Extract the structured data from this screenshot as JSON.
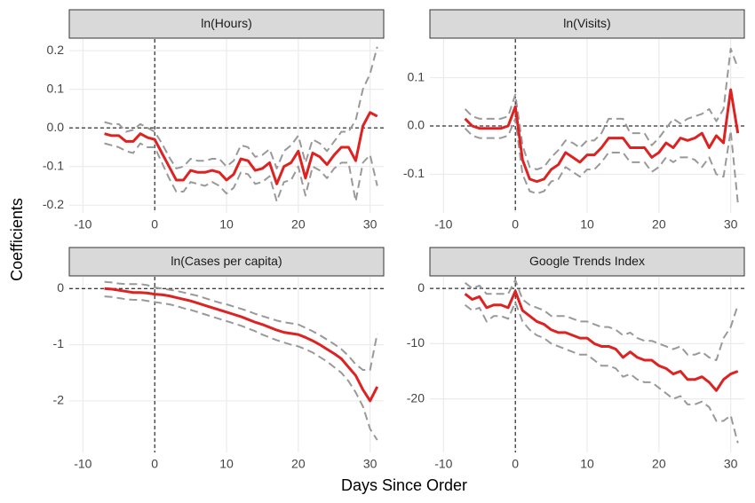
{
  "xlabel": "Days Since Order",
  "ylabel": "Coefficients",
  "chart_data": [
    {
      "type": "line",
      "title": "ln(Hours)",
      "x": [
        -7,
        -6,
        -5,
        -4,
        -3,
        -2,
        -1,
        0,
        1,
        2,
        3,
        4,
        5,
        6,
        7,
        8,
        9,
        10,
        11,
        12,
        13,
        14,
        15,
        16,
        17,
        18,
        19,
        20,
        21,
        22,
        23,
        24,
        25,
        26,
        27,
        28,
        29,
        30,
        31
      ],
      "xlim": [
        -11.9,
        31.9
      ],
      "xticks": [
        -10,
        0,
        10,
        20,
        30
      ],
      "ylim": [
        -0.22,
        0.23
      ],
      "yticks": [
        -0.2,
        -0.1,
        {
          "value": 0,
          "label": "0.0"
        },
        0.1,
        0.2
      ],
      "hline": 0,
      "vline": 0,
      "grid": true,
      "series": [
        {
          "color": "#999999",
          "dash": true,
          "values": [
            0.015,
            0.01,
            0.01,
            -0.01,
            -0.005,
            0.01,
            0.0,
            -0.01,
            -0.04,
            -0.075,
            -0.105,
            -0.1,
            -0.08,
            -0.085,
            -0.085,
            -0.08,
            -0.08,
            -0.1,
            -0.085,
            -0.045,
            -0.05,
            -0.075,
            -0.07,
            -0.055,
            -0.105,
            -0.06,
            -0.045,
            -0.02,
            -0.09,
            -0.03,
            -0.04,
            -0.06,
            -0.035,
            -0.01,
            -0.01,
            0.02,
            0.1,
            0.14,
            0.21
          ]
        },
        {
          "color": "#999999",
          "dash": true,
          "values": [
            -0.04,
            -0.045,
            -0.05,
            -0.06,
            -0.065,
            -0.04,
            -0.05,
            -0.05,
            -0.09,
            -0.13,
            -0.165,
            -0.165,
            -0.14,
            -0.145,
            -0.15,
            -0.14,
            -0.15,
            -0.17,
            -0.155,
            -0.115,
            -0.12,
            -0.145,
            -0.14,
            -0.125,
            -0.19,
            -0.14,
            -0.135,
            -0.1,
            -0.175,
            -0.1,
            -0.11,
            -0.13,
            -0.105,
            -0.09,
            -0.09,
            -0.19,
            -0.09,
            -0.07,
            -0.15
          ]
        },
        {
          "color": "#dd2222",
          "dash": false,
          "values": [
            -0.015,
            -0.02,
            -0.02,
            -0.035,
            -0.035,
            -0.015,
            -0.025,
            -0.03,
            -0.065,
            -0.1,
            -0.135,
            -0.135,
            -0.11,
            -0.115,
            -0.115,
            -0.11,
            -0.115,
            -0.135,
            -0.12,
            -0.08,
            -0.085,
            -0.11,
            -0.105,
            -0.09,
            -0.145,
            -0.1,
            -0.09,
            -0.06,
            -0.13,
            -0.065,
            -0.075,
            -0.095,
            -0.07,
            -0.05,
            -0.05,
            -0.085,
            0.005,
            0.04,
            0.03
          ]
        }
      ]
    },
    {
      "type": "line",
      "title": "ln(Visits)",
      "x": [
        -7,
        -6,
        -5,
        -4,
        -3,
        -2,
        -1,
        0,
        1,
        2,
        3,
        4,
        5,
        6,
        7,
        8,
        9,
        10,
        11,
        12,
        13,
        14,
        15,
        16,
        17,
        18,
        19,
        20,
        21,
        22,
        23,
        24,
        25,
        26,
        27,
        28,
        29,
        30,
        31
      ],
      "xlim": [
        -11.9,
        31.9
      ],
      "xticks": [
        -10,
        0,
        10,
        20,
        30
      ],
      "ylim": [
        -0.18,
        0.18
      ],
      "yticks": [
        -0.1,
        {
          "value": 0,
          "label": "0.0"
        },
        0.1
      ],
      "hline": 0,
      "vline": 0,
      "grid": true,
      "series": [
        {
          "color": "#999999",
          "dash": true,
          "values": [
            0.035,
            0.02,
            0.015,
            0.015,
            0.015,
            0.015,
            0.02,
            0.065,
            -0.04,
            -0.085,
            -0.09,
            -0.085,
            -0.065,
            -0.05,
            -0.03,
            -0.035,
            -0.045,
            -0.03,
            -0.03,
            -0.015,
            0.015,
            0.015,
            0.015,
            -0.015,
            -0.015,
            -0.015,
            -0.04,
            -0.025,
            -0.005,
            0.015,
            0.005,
            0.015,
            0.02,
            0.025,
            0.035,
            0.01,
            0.035,
            0.16,
            0.12
          ]
        },
        {
          "color": "#999999",
          "dash": true,
          "values": [
            -0.005,
            -0.02,
            -0.025,
            -0.025,
            -0.025,
            -0.025,
            -0.02,
            0.015,
            -0.1,
            -0.135,
            -0.14,
            -0.135,
            -0.115,
            -0.11,
            -0.085,
            -0.095,
            -0.105,
            -0.09,
            -0.09,
            -0.075,
            -0.055,
            -0.055,
            -0.055,
            -0.075,
            -0.075,
            -0.075,
            -0.095,
            -0.085,
            -0.065,
            -0.075,
            -0.065,
            -0.065,
            -0.07,
            -0.085,
            -0.065,
            -0.1,
            -0.105,
            -0.01,
            -0.16
          ]
        },
        {
          "color": "#dd2222",
          "dash": false,
          "values": [
            0.015,
            0.0,
            -0.005,
            -0.005,
            -0.005,
            -0.005,
            0.0,
            0.04,
            -0.07,
            -0.11,
            -0.115,
            -0.11,
            -0.09,
            -0.08,
            -0.055,
            -0.065,
            -0.075,
            -0.06,
            -0.06,
            -0.045,
            -0.025,
            -0.025,
            -0.025,
            -0.045,
            -0.045,
            -0.045,
            -0.065,
            -0.055,
            -0.035,
            -0.045,
            -0.025,
            -0.03,
            -0.025,
            -0.015,
            -0.045,
            -0.02,
            -0.035,
            0.075,
            -0.015
          ]
        }
      ]
    },
    {
      "type": "line",
      "title": "ln(Cases per capita)",
      "x": [
        -7,
        -6,
        -5,
        -4,
        -3,
        -2,
        -1,
        0,
        1,
        2,
        3,
        4,
        5,
        6,
        7,
        8,
        9,
        10,
        11,
        12,
        13,
        14,
        15,
        16,
        17,
        18,
        19,
        20,
        21,
        22,
        23,
        24,
        25,
        26,
        27,
        28,
        29,
        30,
        31
      ],
      "xlim": [
        -11.9,
        31.9
      ],
      "xticks": [
        -10,
        0,
        10,
        20,
        30
      ],
      "ylim": [
        -2.92,
        0.21
      ],
      "yticks": [
        -2,
        -1,
        0
      ],
      "hline": 0,
      "vline": 0,
      "grid": true,
      "series": [
        {
          "color": "#999999",
          "dash": true,
          "values": [
            0.12,
            0.11,
            0.09,
            0.08,
            0.08,
            0.08,
            0.06,
            0.02,
            0.0,
            -0.02,
            -0.04,
            -0.07,
            -0.1,
            -0.13,
            -0.17,
            -0.21,
            -0.25,
            -0.28,
            -0.32,
            -0.36,
            -0.4,
            -0.45,
            -0.49,
            -0.53,
            -0.57,
            -0.6,
            -0.62,
            -0.64,
            -0.7,
            -0.76,
            -0.83,
            -0.91,
            -0.99,
            -1.08,
            -1.2,
            -1.35,
            -1.45,
            -1.45,
            -0.8
          ]
        },
        {
          "color": "#999999",
          "dash": true,
          "values": [
            -0.14,
            -0.15,
            -0.17,
            -0.19,
            -0.2,
            -0.2,
            -0.22,
            -0.24,
            -0.26,
            -0.28,
            -0.31,
            -0.35,
            -0.38,
            -0.42,
            -0.46,
            -0.5,
            -0.54,
            -0.58,
            -0.62,
            -0.66,
            -0.71,
            -0.76,
            -0.82,
            -0.87,
            -0.92,
            -0.96,
            -1.0,
            -1.03,
            -1.08,
            -1.14,
            -1.22,
            -1.3,
            -1.4,
            -1.5,
            -1.65,
            -1.85,
            -2.1,
            -2.5,
            -2.7
          ]
        },
        {
          "color": "#dd2222",
          "dash": false,
          "values": [
            0,
            -0.01,
            -0.03,
            -0.05,
            -0.07,
            -0.07,
            -0.08,
            -0.1,
            -0.11,
            -0.13,
            -0.16,
            -0.19,
            -0.22,
            -0.26,
            -0.3,
            -0.34,
            -0.38,
            -0.42,
            -0.46,
            -0.5,
            -0.55,
            -0.6,
            -0.64,
            -0.69,
            -0.74,
            -0.78,
            -0.8,
            -0.82,
            -0.87,
            -0.93,
            -1.0,
            -1.08,
            -1.16,
            -1.25,
            -1.4,
            -1.55,
            -1.8,
            -2.0,
            -1.75
          ]
        }
      ]
    },
    {
      "type": "line",
      "title": "Google Trends Index",
      "x": [
        -7,
        -6,
        -5,
        -4,
        -3,
        -2,
        -1,
        0,
        1,
        2,
        3,
        4,
        5,
        6,
        7,
        8,
        9,
        10,
        11,
        12,
        13,
        14,
        15,
        16,
        17,
        18,
        19,
        20,
        21,
        22,
        23,
        24,
        25,
        26,
        27,
        28,
        29,
        30,
        31
      ],
      "xlim": [
        -11.9,
        31.9
      ],
      "xticks": [
        -10,
        0,
        10,
        20,
        30
      ],
      "ylim": [
        -29.7,
        2.1
      ],
      "yticks": [
        -20,
        -10,
        0
      ],
      "hline": 0,
      "vline": 0,
      "grid": true,
      "series": [
        {
          "color": "#999999",
          "dash": true,
          "values": [
            1,
            0,
            0.5,
            -1,
            -1,
            -1,
            -1,
            1.5,
            -2,
            -3,
            -3.5,
            -4,
            -5,
            -5,
            -5,
            -5.5,
            -6,
            -6,
            -6.5,
            -7,
            -7,
            -7.5,
            -8.5,
            -8,
            -9,
            -9.5,
            -9.5,
            -10,
            -10.5,
            -11,
            -10.5,
            -12,
            -12,
            -11.5,
            -12.5,
            -13,
            -9,
            -7,
            -3
          ]
        },
        {
          "color": "#999999",
          "dash": true,
          "values": [
            -3,
            -4,
            -3.5,
            -6,
            -5,
            -5,
            -5.5,
            -2.5,
            -6,
            -7.5,
            -8.5,
            -9,
            -10,
            -10.5,
            -11,
            -11.5,
            -12,
            -12,
            -13,
            -14,
            -14,
            -14.5,
            -16,
            -15.5,
            -16.5,
            -17,
            -17,
            -18,
            -19,
            -20,
            -19.5,
            -21,
            -21,
            -20.5,
            -21.5,
            -24,
            -24,
            -23,
            -28
          ]
        },
        {
          "color": "#dd2222",
          "dash": false,
          "values": [
            -1,
            -2,
            -1.5,
            -3.5,
            -3,
            -3,
            -3.5,
            -0.5,
            -4,
            -5,
            -6,
            -6.5,
            -7.5,
            -8,
            -8,
            -8.5,
            -9,
            -9,
            -10,
            -10.5,
            -10.5,
            -11,
            -12.5,
            -11.5,
            -12.5,
            -13,
            -13,
            -14,
            -14.5,
            -15.5,
            -15,
            -16.5,
            -16.5,
            -16,
            -17,
            -18.5,
            -16.5,
            -15.5,
            -15
          ]
        }
      ]
    }
  ]
}
